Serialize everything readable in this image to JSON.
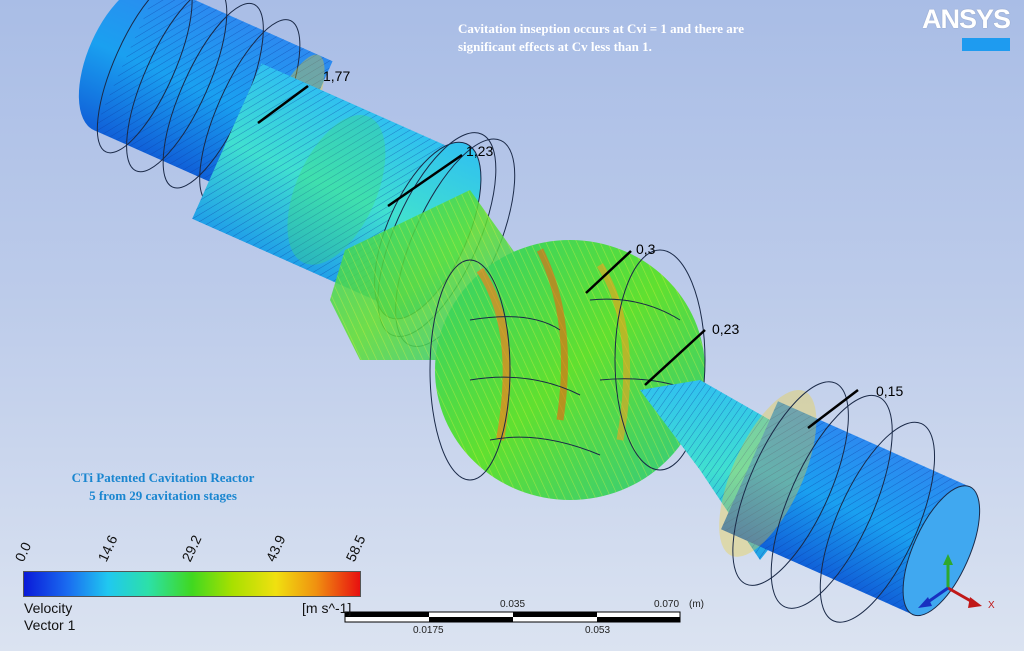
{
  "note": {
    "line1": "Cavitation inseption occurs at Cvi = 1 and there are",
    "line2": "significant effects at Cv less than 1."
  },
  "logo": {
    "text": "ANSYS",
    "accent": "#1e9bf0"
  },
  "caption": {
    "line1": "CTi Patented Cavitation Reactor",
    "line2": "5 from 29 cavitation stages"
  },
  "callouts": [
    "1,77",
    "1,23",
    "0,3",
    "0,23",
    "0,15"
  ],
  "legend": {
    "ticks": [
      "0.0",
      "14.6",
      "29.2",
      "43.9",
      "58.5"
    ],
    "title_line1": "Velocity",
    "title_line2": "Vector 1",
    "units": "[m s^-1]"
  },
  "scale": {
    "top_labels": [
      "0.035",
      "0.070",
      "(m)"
    ],
    "bottom_labels": [
      "0.0175",
      "0.053"
    ]
  },
  "axes": {
    "x_label": "X"
  },
  "colors": {
    "background": "#bccbea",
    "low": "#0a1ad8",
    "mid": "#40d820",
    "high": "#e81010"
  }
}
